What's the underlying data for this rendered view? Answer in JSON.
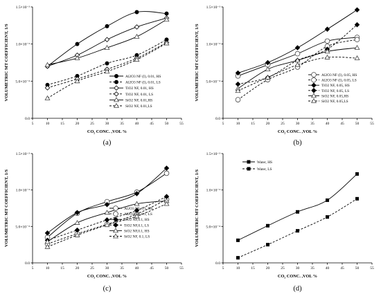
{
  "chart_data": [
    {
      "type": "line",
      "panel_label": "(a)",
      "xlabel": "CO₂ CONC. ,VOL %",
      "ylabel": "VOLUMETRIC MT COEFFICIENT, 1/S",
      "xlim": [
        5,
        55
      ],
      "ylim": [
        0,
        0.0015
      ],
      "xticks": [
        "5",
        "10",
        "15",
        "20",
        "25",
        "30",
        "35",
        "40",
        "45",
        "50",
        "55"
      ],
      "yticks": [
        "0.0",
        "5.0×10⁻⁴",
        "1.0×10⁻³",
        "1.5×10⁻³"
      ],
      "legend_position": "right",
      "series": [
        {
          "name": "Al2O3 NF (I), 0.01, HS",
          "marker": "filled-circle",
          "dash": "solid",
          "x": [
            10,
            20,
            30,
            40,
            50
          ],
          "y": [
            0.0007,
            0.001,
            0.00124,
            0.00143,
            0.00141
          ]
        },
        {
          "name": "Al2O3 NF (I), 0.01, LS",
          "marker": "filled-circle",
          "dash": "dashed",
          "x": [
            10,
            20,
            30,
            40,
            50
          ],
          "y": [
            0.00045,
            0.00057,
            0.00074,
            0.00085,
            0.00106
          ]
        },
        {
          "name": "TiO2 NF, 0.01, HS",
          "marker": "open-diamond",
          "dash": "solid",
          "x": [
            10,
            20,
            30,
            40,
            50
          ],
          "y": [
            0.0007,
            0.00085,
            0.00106,
            0.00123,
            0.00135
          ]
        },
        {
          "name": "TiO2 NF, 0.01, LS",
          "marker": "open-diamond",
          "dash": "dashed",
          "x": [
            10,
            20,
            30,
            40,
            50
          ],
          "y": [
            0.00041,
            0.00053,
            0.00066,
            0.00081,
            0.00102
          ]
        },
        {
          "name": "SiO2 NF, 0.01,HS",
          "marker": "open-triangle",
          "dash": "solid",
          "x": [
            10,
            20,
            30,
            40,
            50
          ],
          "y": [
            0.00072,
            0.00081,
            0.00095,
            0.0011,
            0.00133
          ]
        },
        {
          "name": "SiO2 NF, 0.01,LS",
          "marker": "open-triangle",
          "dash": "dashed",
          "x": [
            10,
            20,
            30,
            40,
            50
          ],
          "y": [
            0.00027,
            0.0005,
            0.00063,
            0.00079,
            0.00101
          ]
        }
      ]
    },
    {
      "type": "line",
      "panel_label": "(b)",
      "xlabel": "CO₂ CONC. ,VOL %",
      "ylabel": "VOLUMETRIC MT COEFFICIENT, 1/S",
      "xlim": [
        5,
        55
      ],
      "ylim": [
        0,
        0.0015
      ],
      "xticks": [
        "5",
        "10",
        "15",
        "20",
        "25",
        "30",
        "35",
        "40",
        "45",
        "50",
        "55"
      ],
      "yticks": [
        "0.0",
        "5.0×10⁻⁴",
        "1.0×10⁻³",
        "1.5×10⁻³"
      ],
      "legend_position": "bottom-right",
      "series": [
        {
          "name": "Al2O3 NF (I), 0.05, HS",
          "marker": "open-circle",
          "dash": "solid",
          "x": [
            10,
            20,
            30,
            40,
            50
          ],
          "y": [
            0.00057,
            0.00072,
            0.00087,
            0.00104,
            0.00109
          ]
        },
        {
          "name": "Al2O3 NF (I), 0.05, LS",
          "marker": "open-circle",
          "dash": "dashed",
          "x": [
            10,
            20,
            30,
            40,
            50
          ],
          "y": [
            0.00025,
            0.00052,
            0.00069,
            0.00097,
            0.00106
          ]
        },
        {
          "name": "TiO2 NF, 0.05, HS",
          "marker": "filled-diamond",
          "dash": "solid",
          "x": [
            10,
            20,
            30,
            40,
            50
          ],
          "y": [
            0.00061,
            0.00075,
            0.00095,
            0.0012,
            0.00146
          ]
        },
        {
          "name": "TiO2 NF, 0.05, LS",
          "marker": "filled-diamond",
          "dash": "dashed",
          "x": [
            10,
            20,
            30,
            40,
            50
          ],
          "y": [
            0.00046,
            0.00055,
            0.00078,
            0.00093,
            0.00126
          ]
        },
        {
          "name": "SiO2 NF, 0.05,HS",
          "marker": "open-triangle",
          "dash": "solid",
          "x": [
            10,
            20,
            30,
            40,
            50
          ],
          "y": [
            0.0004,
            0.00066,
            0.00078,
            0.0009,
            0.00095
          ]
        },
        {
          "name": "SiO2 NF, 0.05,LS",
          "marker": "open-triangle",
          "dash": "dashed",
          "x": [
            10,
            20,
            30,
            40,
            50
          ],
          "y": [
            0.00037,
            0.00055,
            0.00072,
            0.00082,
            0.00081
          ]
        }
      ]
    },
    {
      "type": "line",
      "panel_label": "(c)",
      "xlabel": "CO₂ CONC. ,VOL %",
      "ylabel": "VOLUMETRIC MT COEFFICIENT, 1/S",
      "xlim": [
        5,
        55
      ],
      "ylim": [
        0,
        0.0015
      ],
      "xticks": [
        "5",
        "10",
        "15",
        "20",
        "25",
        "30",
        "35",
        "40",
        "45",
        "50",
        "55"
      ],
      "yticks": [
        "0.0",
        "5.0×10⁻⁴",
        "1.0×10⁻³",
        "1.5×10⁻³"
      ],
      "legend_position": "bottom-right",
      "series": [
        {
          "name": "Al2O3 NF, 0.1, HS",
          "marker": "open-circle",
          "dash": "solid",
          "x": [
            10,
            20,
            30,
            40,
            50
          ],
          "y": [
            0.00035,
            0.00068,
            0.00084,
            0.00097,
            0.00123
          ]
        },
        {
          "name": "Al2O3 NF, 0.1, LS",
          "marker": "open-circle",
          "dash": "dashed",
          "x": [
            10,
            20,
            30,
            40,
            50
          ],
          "y": [
            0.00026,
            0.0004,
            0.00053,
            0.00067,
            0.00087
          ]
        },
        {
          "name": "TiO2 NF,0.1, HS",
          "marker": "filled-diamond",
          "dash": "solid",
          "x": [
            10,
            20,
            30,
            40,
            50
          ],
          "y": [
            0.00041,
            0.00069,
            0.0008,
            0.00095,
            0.0013
          ]
        },
        {
          "name": "TiO2 NF,0.1, LS",
          "marker": "filled-diamond",
          "dash": "dashed",
          "x": [
            10,
            20,
            30,
            40,
            50
          ],
          "y": [
            0.00031,
            0.00045,
            0.00059,
            0.00072,
            0.00091
          ]
        },
        {
          "name": "SiO2 NF,0.1, HS",
          "marker": "open-triangle",
          "dash": "solid",
          "x": [
            10,
            20,
            30,
            40,
            50
          ],
          "y": [
            0.00029,
            0.00055,
            0.00069,
            0.00081,
            0.00085
          ]
        },
        {
          "name": "SiO2 NF, 0.1, LS",
          "marker": "open-triangle",
          "dash": "dashed",
          "x": [
            10,
            20,
            30,
            40,
            50
          ],
          "y": [
            0.00022,
            0.00038,
            0.00052,
            0.00064,
            0.00081
          ]
        }
      ]
    },
    {
      "type": "line",
      "panel_label": "(d)",
      "xlabel": "CO₂ CONC. ,VOL %",
      "ylabel": "VOLUMETRIC MT COEFFICIENT, 1/S",
      "xlim": [
        5,
        55
      ],
      "ylim": [
        0,
        0.0015
      ],
      "xticks": [
        "5",
        "10",
        "15",
        "20",
        "25",
        "30",
        "35",
        "40",
        "45",
        "50",
        "55"
      ],
      "yticks": [
        "0.0",
        "5.0×10⁻⁴",
        "1.0×10⁻³",
        "1.5×10⁻³"
      ],
      "legend_position": "top-left",
      "series": [
        {
          "name": "Water, HS",
          "marker": "filled-square",
          "dash": "solid",
          "x": [
            10,
            20,
            30,
            40,
            50
          ],
          "y": [
            0.00031,
            0.00051,
            0.0007,
            0.00086,
            0.00122
          ]
        },
        {
          "name": "Water, LS",
          "marker": "filled-square",
          "dash": "dashed",
          "x": [
            10,
            20,
            30,
            40,
            50
          ],
          "y": [
            7e-05,
            0.00025,
            0.00044,
            0.00063,
            0.00088
          ]
        }
      ]
    }
  ]
}
